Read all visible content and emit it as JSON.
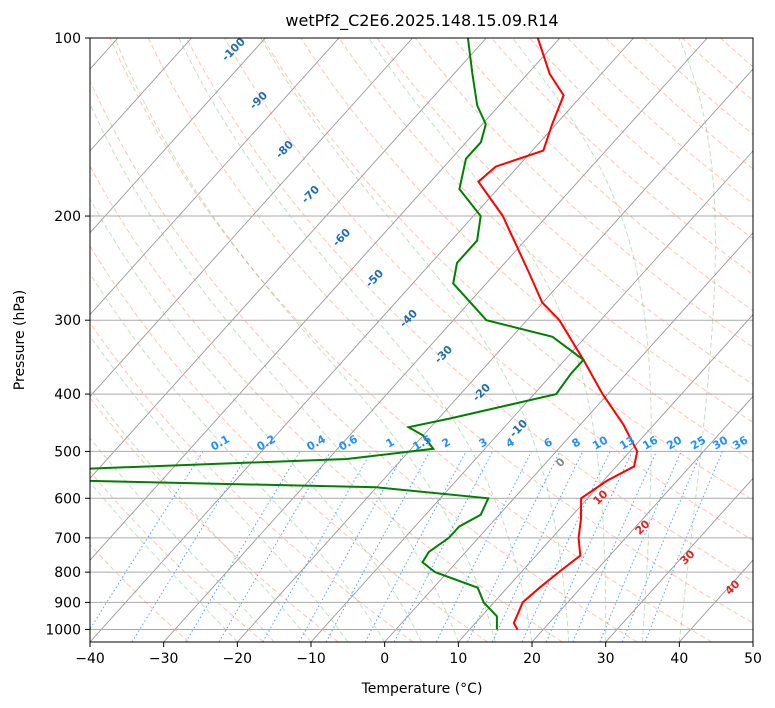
{
  "chart_data": {
    "type": "line",
    "title": "wetPf2_C2E6.2025.148.15.09.R14",
    "xlabel": "Temperature (°C)",
    "ylabel": "Pressure (hPa)",
    "xlim": [
      -40,
      50
    ],
    "ylim": [
      1050,
      100
    ],
    "y_scale": "log",
    "skew_T": true,
    "grid": true,
    "x_ticks": [
      -40,
      -30,
      -20,
      -10,
      0,
      10,
      20,
      30,
      40,
      50
    ],
    "y_ticks": [
      100,
      200,
      300,
      400,
      500,
      600,
      700,
      800,
      900,
      1000
    ],
    "series": [
      {
        "color": "#ff0000",
        "points": [
          {
            "p": 1000,
            "t": 16.5
          },
          {
            "p": 975,
            "t": 15.2
          },
          {
            "p": 950,
            "t": 14.8
          },
          {
            "p": 900,
            "t": 13.9
          },
          {
            "p": 850,
            "t": 14.4
          },
          {
            "p": 800,
            "t": 15.1
          },
          {
            "p": 750,
            "t": 16.0
          },
          {
            "p": 700,
            "t": 13.6
          },
          {
            "p": 650,
            "t": 11.6
          },
          {
            "p": 600,
            "t": 9.1
          },
          {
            "p": 560,
            "t": 10.5
          },
          {
            "p": 530,
            "t": 12.4
          },
          {
            "p": 500,
            "t": 11.0
          },
          {
            "p": 450,
            "t": 5.8
          },
          {
            "p": 400,
            "t": -0.7
          },
          {
            "p": 350,
            "t": -7.5
          },
          {
            "p": 300,
            "t": -15.6
          },
          {
            "p": 280,
            "t": -20.1
          },
          {
            "p": 250,
            "t": -25.4
          },
          {
            "p": 200,
            "t": -36.0
          },
          {
            "p": 175,
            "t": -43.5
          },
          {
            "p": 165,
            "t": -43.0
          },
          {
            "p": 155,
            "t": -38.5
          },
          {
            "p": 140,
            "t": -40.5
          },
          {
            "p": 125,
            "t": -42.5
          },
          {
            "p": 115,
            "t": -47.0
          },
          {
            "p": 100,
            "t": -53.0
          }
        ]
      },
      {
        "color": "#008000",
        "points": [
          {
            "p": 1000,
            "t": 13.7
          },
          {
            "p": 950,
            "t": 12.1
          },
          {
            "p": 900,
            "t": 8.6
          },
          {
            "p": 850,
            "t": 6.0
          },
          {
            "p": 800,
            "t": -1.7
          },
          {
            "p": 770,
            "t": -4.6
          },
          {
            "p": 740,
            "t": -5.0
          },
          {
            "p": 700,
            "t": -4.0
          },
          {
            "p": 670,
            "t": -4.0
          },
          {
            "p": 640,
            "t": -2.5
          },
          {
            "p": 600,
            "t": -3.5
          },
          {
            "p": 575,
            "t": -20.0
          },
          {
            "p": 560,
            "t": -62.0
          },
          {
            "p": 548,
            "t": -84.0
          },
          {
            "p": 535,
            "t": -62.0
          },
          {
            "p": 515,
            "t": -27.5
          },
          {
            "p": 495,
            "t": -17.0
          },
          {
            "p": 470,
            "t": -20.0
          },
          {
            "p": 455,
            "t": -23.0
          },
          {
            "p": 440,
            "t": -18.5
          },
          {
            "p": 400,
            "t": -7.0
          },
          {
            "p": 370,
            "t": -7.5
          },
          {
            "p": 350,
            "t": -7.5
          },
          {
            "p": 320,
            "t": -14.5
          },
          {
            "p": 300,
            "t": -25.5
          },
          {
            "p": 260,
            "t": -34.5
          },
          {
            "p": 240,
            "t": -36.5
          },
          {
            "p": 220,
            "t": -36.5
          },
          {
            "p": 200,
            "t": -39.0
          },
          {
            "p": 180,
            "t": -45.2
          },
          {
            "p": 160,
            "t": -48.0
          },
          {
            "p": 150,
            "t": -48.0
          },
          {
            "p": 140,
            "t": -49.5
          },
          {
            "p": 130,
            "t": -53.0
          },
          {
            "p": 115,
            "t": -57.5
          },
          {
            "p": 100,
            "t": -62.5
          }
        ]
      }
    ],
    "dry_adiabats": {
      "color": "#ff6633",
      "labels": []
    },
    "moist_adiabats": {
      "color": "#339933",
      "labels": []
    },
    "isotherm_labels": {
      "color": "#1f6fb4",
      "values": [
        "-100",
        "-90",
        "-80",
        "-70",
        "-60",
        "-50",
        "-40",
        "-30",
        "-20",
        "-10"
      ]
    },
    "mixing_ratio_labels": {
      "color": "#1e90ff",
      "values": [
        "0.1",
        "0.2",
        "0.4",
        "0.6",
        "1",
        "1.5",
        "2",
        "3",
        "4",
        "6",
        "8",
        "10",
        "13",
        "16",
        "20",
        "25",
        "30",
        "36"
      ]
    },
    "temp_labels_bottom": {
      "values": [
        "0",
        "10",
        "20",
        "30",
        "40"
      ],
      "colors": [
        "#888888",
        "#d62728",
        "#d62728",
        "#d62728",
        "#d62728"
      ]
    }
  }
}
